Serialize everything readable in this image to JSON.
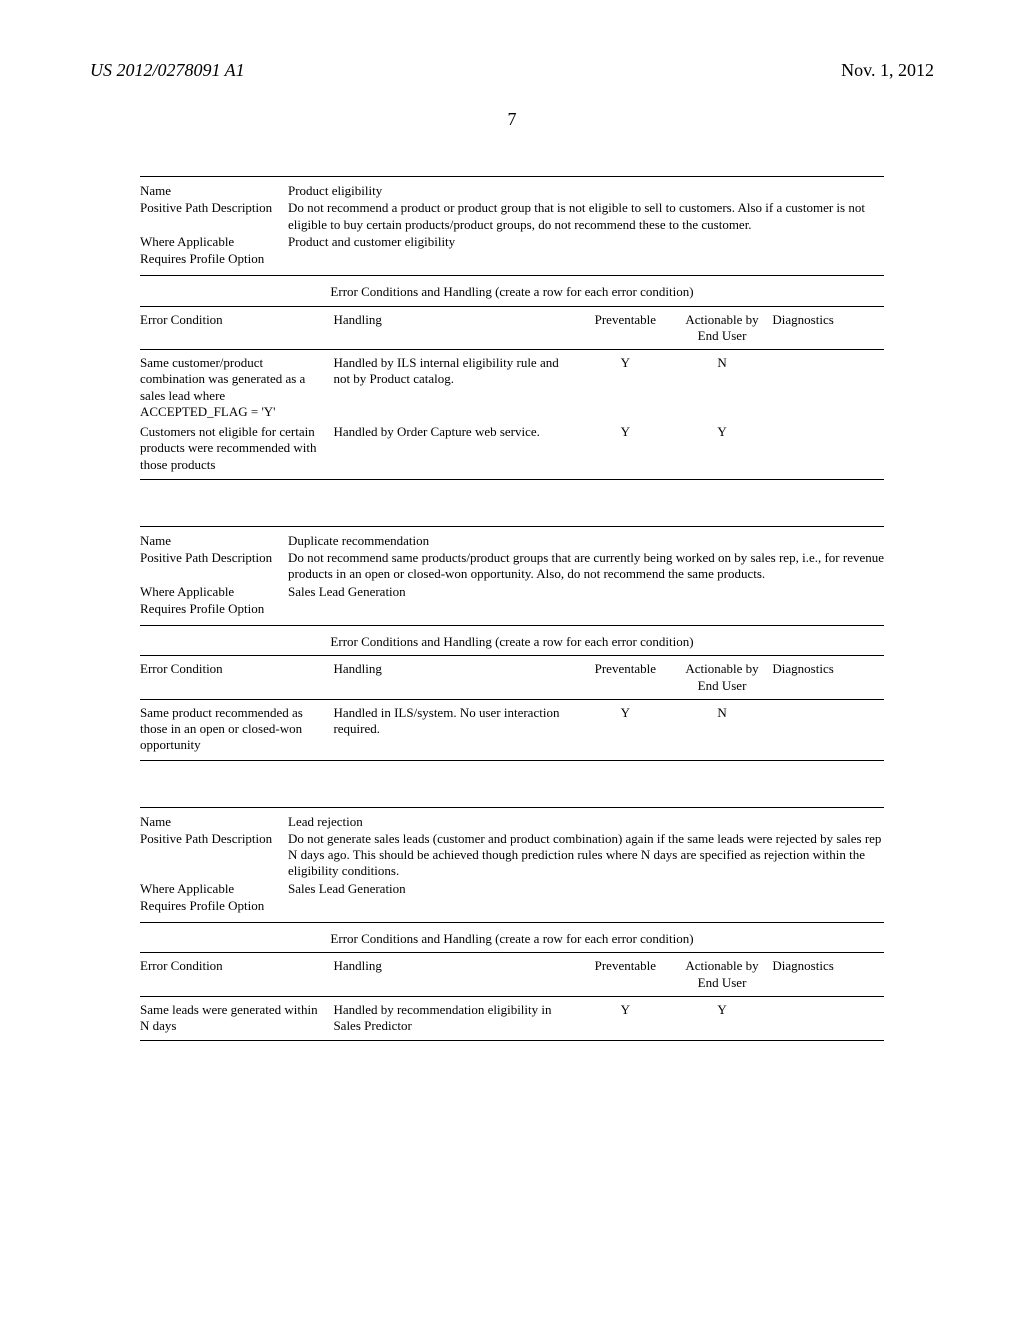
{
  "header": {
    "pub_number": "US 2012/0278091 A1",
    "pub_date": "Nov. 1, 2012",
    "page_no": "7"
  },
  "sections": [
    {
      "name_label": "Name",
      "name_value": "Product eligibility",
      "path_label": "Positive Path Description",
      "path_value": "Do not recommend a product or product group that is not eligible to sell to customers. Also if a customer is not eligible to buy certain products/product groups, do not recommend these to the customer.",
      "where_label": "Where Applicable",
      "where_value": "Product and customer eligibility",
      "req_label": "Requires Profile Option",
      "caption": "Error Conditions and Handling (create a row for each error condition)",
      "cols": {
        "cond": "Error Condition",
        "hand": "Handling",
        "prev": "Preventable",
        "act": "Actionable by End User",
        "diag": "Diagnostics"
      },
      "rows": [
        {
          "cond": "Same customer/product combination was generated as a sales lead where ACCEPTED_FLAG = 'Y'",
          "hand": "Handled by ILS internal eligibility rule and not by Product catalog.",
          "prev": "Y",
          "act": "N",
          "diag": ""
        },
        {
          "cond": "Customers not eligible for certain products were recommended with those products",
          "hand": "Handled by Order Capture web service.",
          "prev": "Y",
          "act": "Y",
          "diag": ""
        }
      ]
    },
    {
      "name_label": "Name",
      "name_value": "Duplicate recommendation",
      "path_label": "Positive Path Description",
      "path_value": "Do not recommend same products/product groups that are currently being worked on by sales rep, i.e., for revenue products in an open or closed-won opportunity. Also, do not recommend the same products.",
      "where_label": "Where Applicable",
      "where_value": "Sales Lead Generation",
      "req_label": "Requires Profile Option",
      "caption": "Error Conditions and Handling (create a row for each error condition)",
      "cols": {
        "cond": "Error Condition",
        "hand": "Handling",
        "prev": "Preventable",
        "act": "Actionable by End User",
        "diag": "Diagnostics"
      },
      "rows": [
        {
          "cond": "Same product recommended as those in an open or closed-won opportunity",
          "hand": "Handled in ILS/system. No user interaction required.",
          "prev": "Y",
          "act": "N",
          "diag": ""
        }
      ]
    },
    {
      "name_label": "Name",
      "name_value": "Lead rejection",
      "path_label": "Positive Path Description",
      "path_value": "Do not generate sales leads (customer and product combination) again if the same leads were rejected by sales rep N days ago. This should be achieved though prediction rules where N days are specified as rejection within the eligibility conditions.",
      "where_label": "Where Applicable",
      "where_value": "Sales Lead Generation",
      "req_label": "Requires Profile Option",
      "caption": "Error Conditions and Handling (create a row for each error condition)",
      "cols": {
        "cond": "Error Condition",
        "hand": "Handling",
        "prev": "Preventable",
        "act": "Actionable by End User",
        "diag": "Diagnostics"
      },
      "rows": [
        {
          "cond": "Same leads were generated within N days",
          "hand": "Handled by recommendation eligibility in Sales Predictor",
          "prev": "Y",
          "act": "Y",
          "diag": ""
        }
      ]
    }
  ]
}
